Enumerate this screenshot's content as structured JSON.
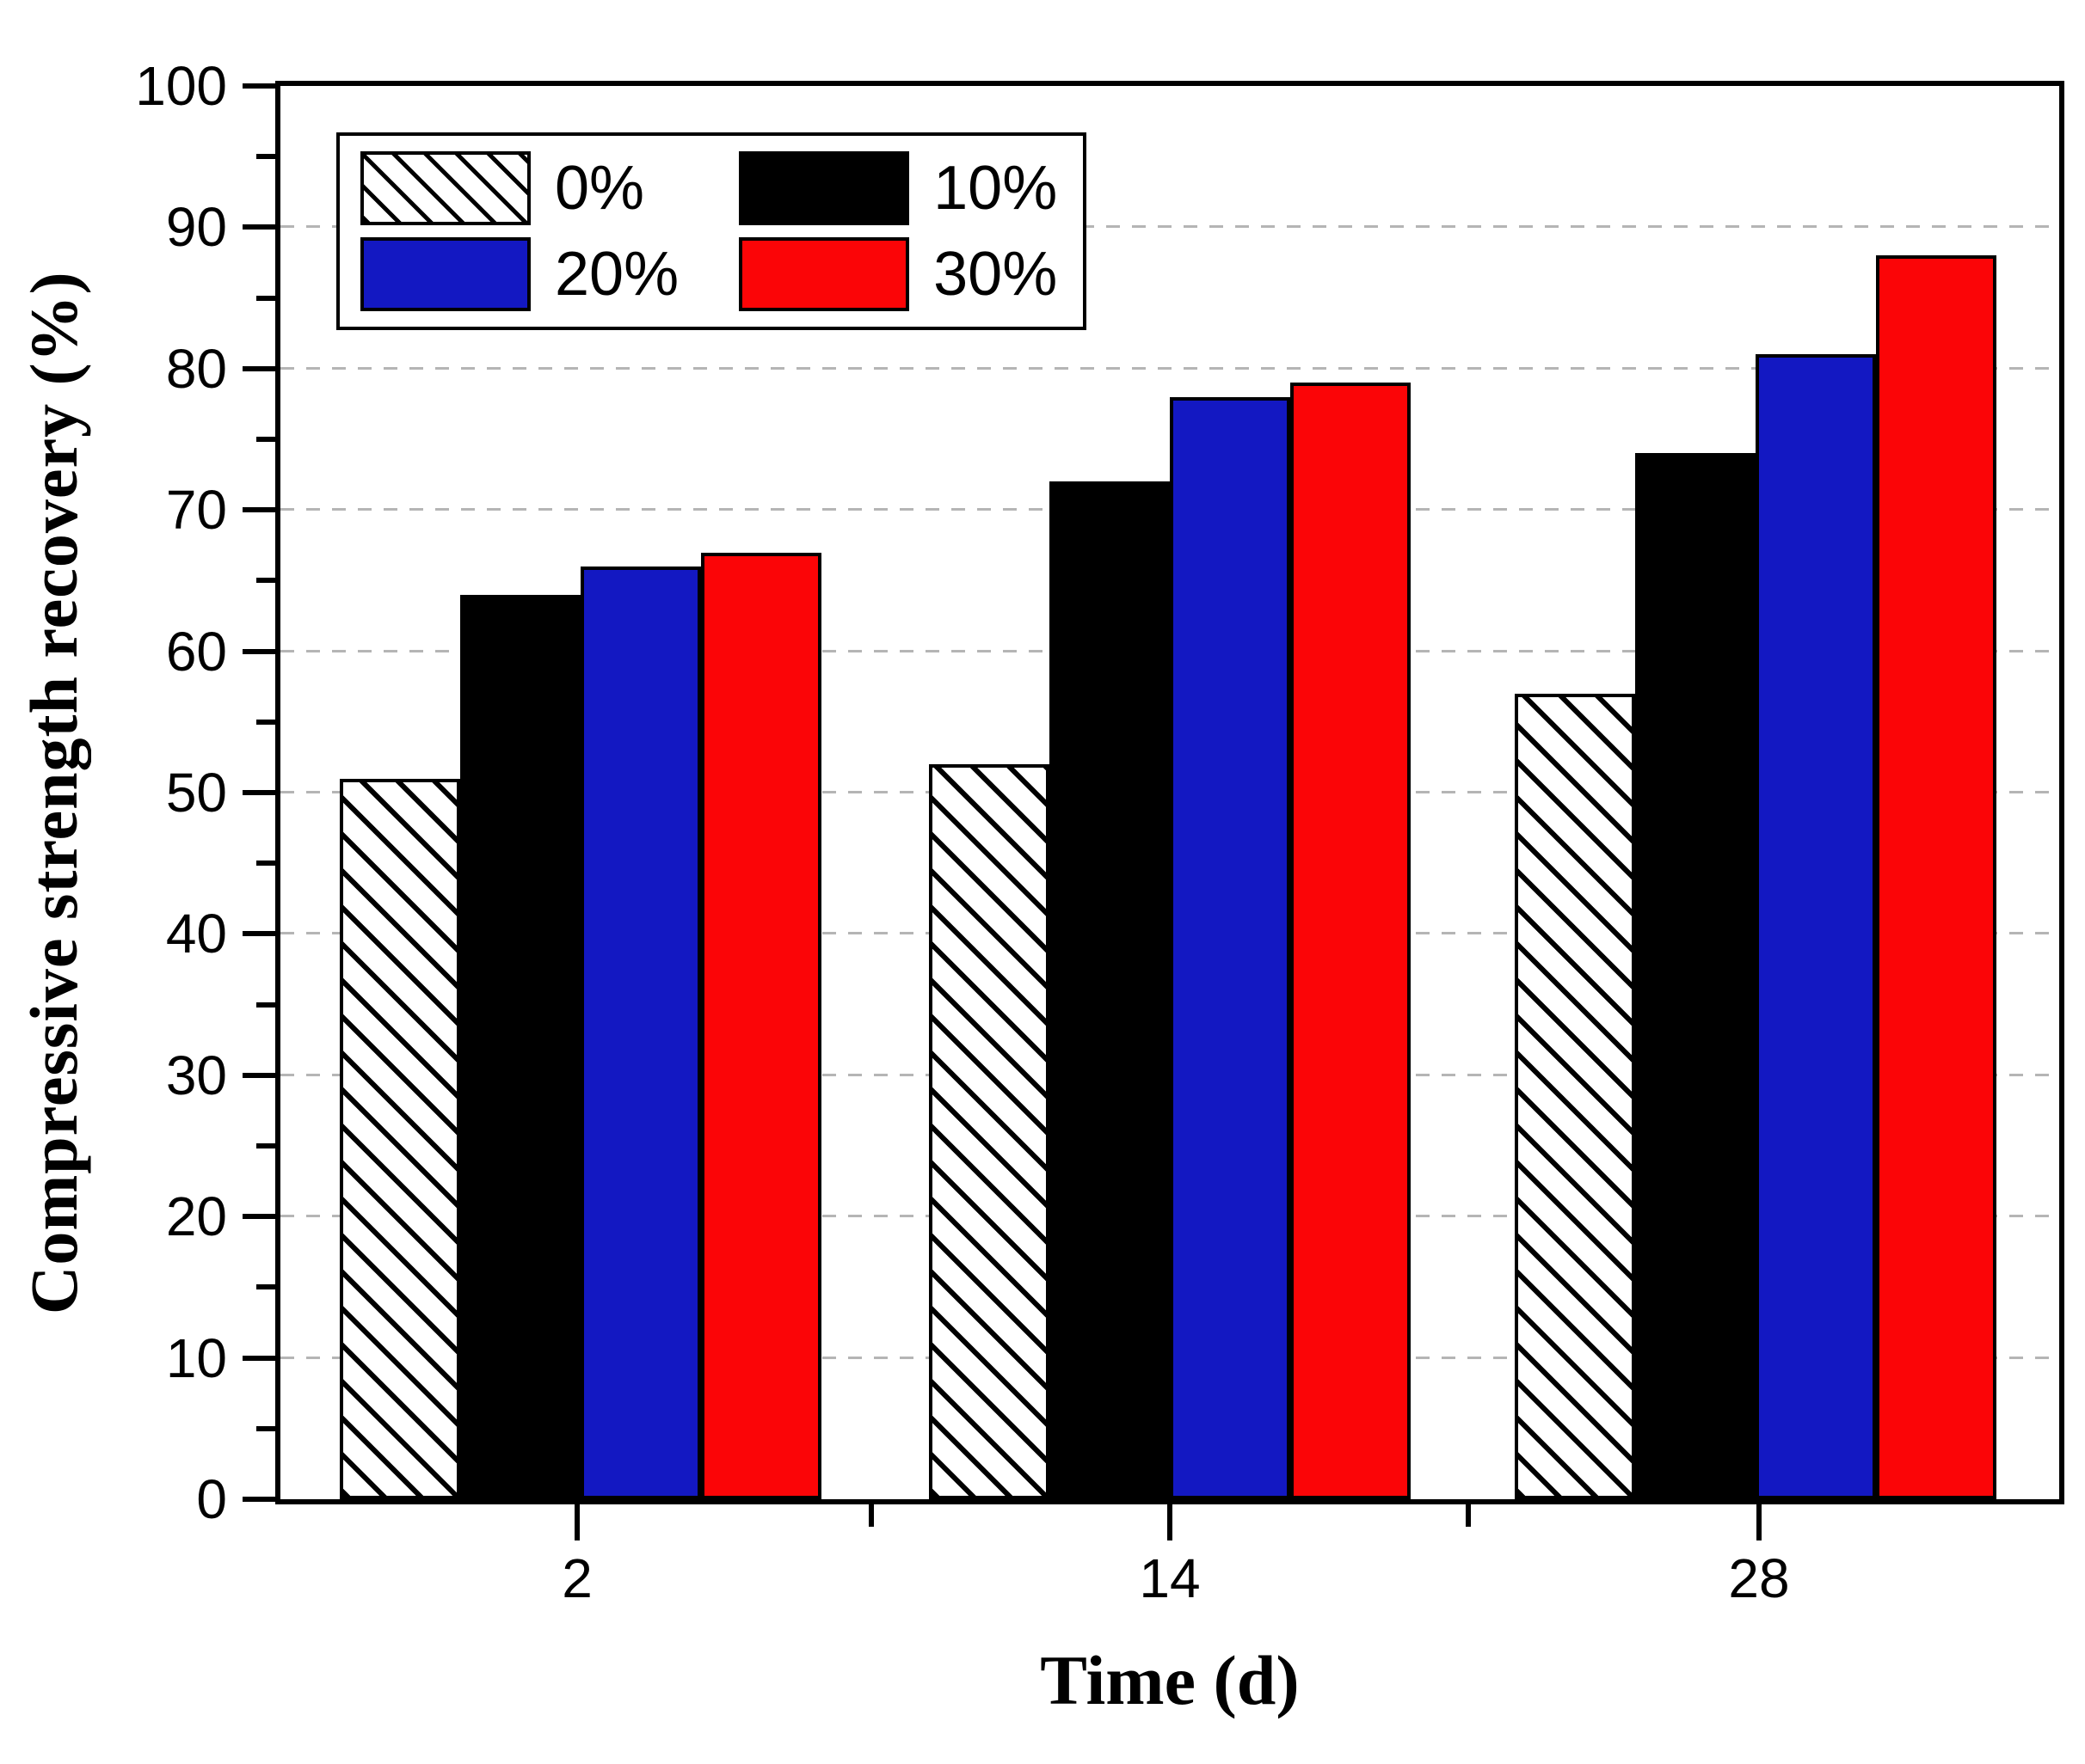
{
  "chart_data": {
    "type": "bar",
    "title": "",
    "xlabel": "Time (d)",
    "ylabel": "Compressive strength recovery (%)",
    "categories": [
      "2",
      "14",
      "28"
    ],
    "series": [
      {
        "name": "0%",
        "fill": "hatch",
        "color": "#000000",
        "values": [
          51,
          52,
          57
        ]
      },
      {
        "name": "10%",
        "fill": "solid",
        "color": "#000000",
        "values": [
          64,
          72,
          74
        ]
      },
      {
        "name": "20%",
        "fill": "solid",
        "color": "#1318c2",
        "values": [
          66,
          78,
          81
        ]
      },
      {
        "name": "30%",
        "fill": "solid",
        "color": "#fb0507",
        "values": [
          67,
          79,
          88
        ]
      }
    ],
    "ylim": [
      0,
      100
    ],
    "yticks": [
      0,
      10,
      20,
      30,
      40,
      50,
      60,
      70,
      80,
      90,
      100
    ],
    "ytick_minor_step": 5,
    "grid": "dashed-horizontal",
    "legend_position": "top-left"
  },
  "colors": {
    "grid": "#b5b5b5",
    "axis": "#000000",
    "background": "#ffffff"
  }
}
